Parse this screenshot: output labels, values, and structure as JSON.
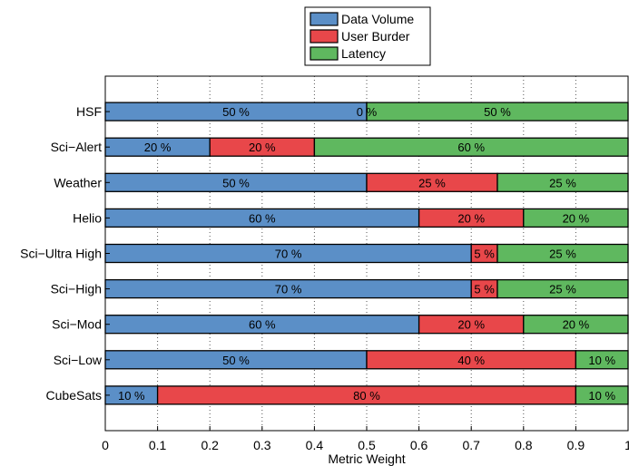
{
  "chart_data": {
    "type": "bar",
    "orientation": "horizontal",
    "stacked": true,
    "categories": [
      "HSF",
      "Sci−Alert",
      "Weather",
      "Helio",
      "Sci−Ultra High",
      "Sci−High",
      "Sci−Mod",
      "Sci−Low",
      "CubeSats"
    ],
    "series": [
      {
        "name": "Data Volume",
        "color": "#5b8fc7",
        "values": [
          0.5,
          0.2,
          0.5,
          0.6,
          0.7,
          0.7,
          0.6,
          0.5,
          0.1
        ],
        "labels": [
          "50 %",
          "20 %",
          "50 %",
          "60 %",
          "70 %",
          "70 %",
          "60 %",
          "50 %",
          "10 %"
        ]
      },
      {
        "name": "User Burder",
        "color": "#e8474a",
        "values": [
          0.0,
          0.2,
          0.25,
          0.2,
          0.05,
          0.05,
          0.2,
          0.4,
          0.8
        ],
        "labels": [
          "0 %",
          "20 %",
          "25 %",
          "20 %",
          "5 %",
          "5 %",
          "20 %",
          "40 %",
          "80 %"
        ]
      },
      {
        "name": "Latency",
        "color": "#5fb85f",
        "values": [
          0.5,
          0.6,
          0.25,
          0.2,
          0.25,
          0.25,
          0.2,
          0.1,
          0.1
        ],
        "labels": [
          "50 %",
          "60 %",
          "25 %",
          "20 %",
          "25 %",
          "25 %",
          "20 %",
          "10 %",
          "10 %"
        ]
      }
    ],
    "xlabel": "Metric Weight",
    "ylabel": "",
    "xlim": [
      0,
      1
    ],
    "xticks": [
      "0",
      "0.1",
      "0.2",
      "0.3",
      "0.4",
      "0.5",
      "0.6",
      "0.7",
      "0.8",
      "0.9",
      "1"
    ],
    "grid": "vertical dotted",
    "legend": "top-center"
  }
}
